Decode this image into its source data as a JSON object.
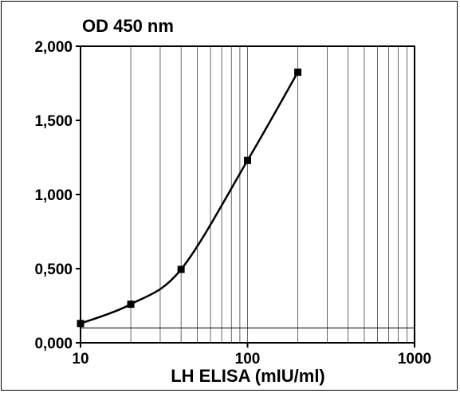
{
  "chart_data": {
    "type": "line",
    "title": "OD 450 nm",
    "xlabel": "LH ELISA (mIU/ml)",
    "ylabel": "",
    "x_scale": "log",
    "xlim": [
      10,
      1000
    ],
    "ylim": [
      0,
      2000
    ],
    "x_ticks": [
      {
        "value": 10,
        "label": "10"
      },
      {
        "value": 100,
        "label": "100"
      },
      {
        "value": 1000,
        "label": "1000"
      }
    ],
    "y_ticks": [
      {
        "value": 0,
        "label": "0,000"
      },
      {
        "value": 500,
        "label": "0,500"
      },
      {
        "value": 1000,
        "label": "1,000"
      },
      {
        "value": 1500,
        "label": "1,500"
      },
      {
        "value": 2000,
        "label": "2,000"
      }
    ],
    "reference_line_y": 100,
    "grid": "vertical log gridlines",
    "series": [
      {
        "marker": "square",
        "color": "#000000",
        "x": [
          10,
          20,
          40,
          100,
          200
        ],
        "y": [
          130,
          260,
          495,
          1230,
          1825
        ]
      }
    ]
  }
}
